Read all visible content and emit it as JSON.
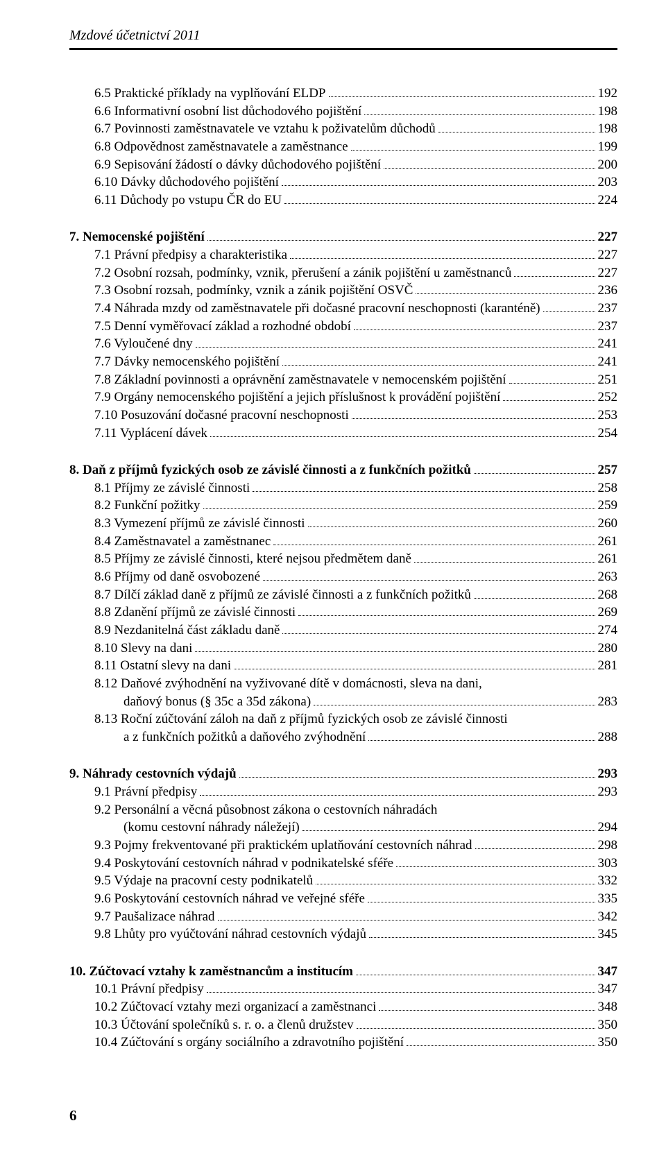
{
  "header_title": "Mzdové účetnictví 2011",
  "blocks": [
    {
      "items": [
        {
          "level": "level-1",
          "label": "6.5  Praktické příklady na vyplňování ELDP",
          "page": "192"
        },
        {
          "level": "level-1",
          "label": "6.6  Informativní osobní list důchodového pojištění",
          "page": "198"
        },
        {
          "level": "level-1",
          "label": "6.7  Povinnosti zaměstnavatele ve vztahu k poživatelům důchodů",
          "page": "198"
        },
        {
          "level": "level-1",
          "label": "6.8  Odpovědnost zaměstnavatele a zaměstnance",
          "page": "199"
        },
        {
          "level": "level-1",
          "label": "6.9  Sepisování žádostí o dávky důchodového pojištění",
          "page": "200"
        },
        {
          "level": "level-1",
          "label": "6.10  Dávky důchodového pojištění",
          "page": "203"
        },
        {
          "level": "level-1",
          "label": "6.11  Důchody po vstupu ČR do EU",
          "page": "224"
        }
      ]
    },
    {
      "heading": {
        "level": "level-h",
        "label": "7.  Nemocenské pojištění",
        "page": "227"
      },
      "items": [
        {
          "level": "level-1",
          "label": "7.1  Právní předpisy a charakteristika",
          "page": "227"
        },
        {
          "level": "level-1",
          "label": "7.2  Osobní rozsah, podmínky, vznik, přerušení a zánik pojištění u zaměstnanců",
          "page": "227"
        },
        {
          "level": "level-1",
          "label": "7.3  Osobní rozsah, podmínky, vznik a zánik pojištění OSVČ",
          "page": "236"
        },
        {
          "level": "level-1",
          "label": "7.4  Náhrada mzdy od zaměstnavatele při dočasné pracovní neschopnosti (karanténě)",
          "page": "237"
        },
        {
          "level": "level-1",
          "label": "7.5  Denní vyměřovací základ a rozhodné období",
          "page": "237"
        },
        {
          "level": "level-1",
          "label": "7.6  Vyloučené dny",
          "page": "241"
        },
        {
          "level": "level-1",
          "label": "7.7  Dávky nemocenského pojištění",
          "page": "241"
        },
        {
          "level": "level-1",
          "label": "7.8  Základní povinnosti a oprávnění zaměstnavatele v nemocenském pojištění",
          "page": "251"
        },
        {
          "level": "level-1",
          "label": "7.9  Orgány nemocenského pojištění a jejich příslušnost k provádění pojištění",
          "page": "252"
        },
        {
          "level": "level-1",
          "label": "7.10  Posuzování dočasné pracovní neschopnosti",
          "page": "253"
        },
        {
          "level": "level-1",
          "label": "7.11  Vyplácení dávek",
          "page": "254"
        }
      ]
    },
    {
      "heading": {
        "level": "level-h",
        "label": "8.  Daň z příjmů fyzických osob ze závislé činnosti a z funkčních požitků",
        "page": "257"
      },
      "items": [
        {
          "level": "level-1",
          "label": "8.1  Příjmy ze závislé činnosti",
          "page": "258"
        },
        {
          "level": "level-1",
          "label": "8.2  Funkční požitky",
          "page": "259"
        },
        {
          "level": "level-1",
          "label": "8.3  Vymezení příjmů ze závislé činnosti",
          "page": "260"
        },
        {
          "level": "level-1",
          "label": "8.4  Zaměstnavatel a zaměstnanec",
          "page": "261"
        },
        {
          "level": "level-1",
          "label": "8.5  Příjmy ze závislé činnosti, které nejsou předmětem daně",
          "page": "261"
        },
        {
          "level": "level-1",
          "label": "8.6  Příjmy od daně osvobozené",
          "page": "263"
        },
        {
          "level": "level-1",
          "label": "8.7  Dílčí základ daně z příjmů ze závislé činnosti a z funkčních požitků",
          "page": "268"
        },
        {
          "level": "level-1",
          "label": "8.8  Zdanění příjmů ze závislé činnosti",
          "page": "269"
        },
        {
          "level": "level-1",
          "label": "8.9  Nezdanitelná část základu daně",
          "page": "274"
        },
        {
          "level": "level-1",
          "label": "8.10  Slevy na dani",
          "page": "280"
        },
        {
          "level": "level-1",
          "label": "8.11  Ostatní slevy na dani",
          "page": "281"
        },
        {
          "level": "level-1",
          "label_lines": [
            "8.12  Daňové zvýhodnění na vyživované dítě v domácnosti, sleva na dani,",
            "daňový bonus (§ 35c a 35d zákona)"
          ],
          "page": "283"
        },
        {
          "level": "level-1",
          "label_lines": [
            "8.13  Roční zúčtování záloh na daň z příjmů fyzických osob ze závislé činnosti",
            "a z funkčních požitků a daňového zvýhodnění"
          ],
          "page": "288"
        }
      ]
    },
    {
      "heading": {
        "level": "level-h",
        "label": "9.  Náhrady cestovních výdajů",
        "page": "293"
      },
      "items": [
        {
          "level": "level-1",
          "label": "9.1  Právní předpisy",
          "page": "293"
        },
        {
          "level": "level-1",
          "label_lines": [
            "9.2  Personální a věcná působnost zákona o cestovních náhradách",
            "(komu cestovní náhrady náležejí)"
          ],
          "page": "294"
        },
        {
          "level": "level-1",
          "label": "9.3  Pojmy frekventované při praktickém uplatňování cestovních náhrad",
          "page": "298"
        },
        {
          "level": "level-1",
          "label": "9.4  Poskytování cestovních náhrad v podnikatelské sféře",
          "page": "303"
        },
        {
          "level": "level-1",
          "label": "9.5  Výdaje na pracovní cesty podnikatelů",
          "page": "332"
        },
        {
          "level": "level-1",
          "label": "9.6  Poskytování cestovních náhrad ve veřejné sféře",
          "page": "335"
        },
        {
          "level": "level-1",
          "label": "9.7  Paušalizace náhrad",
          "page": "342"
        },
        {
          "level": "level-1",
          "label": "9.8  Lhůty pro vyúčtování náhrad cestovních výdajů",
          "page": "345"
        }
      ]
    },
    {
      "heading": {
        "level": "level-h",
        "label": "10.  Zúčtovací vztahy k zaměstnancům a institucím",
        "page": "347"
      },
      "items": [
        {
          "level": "level-1",
          "label": "10.1  Právní předpisy",
          "page": "347"
        },
        {
          "level": "level-1",
          "label": "10.2  Zúčtovací vztahy mezi organizací a zaměstnanci",
          "page": "348"
        },
        {
          "level": "level-1",
          "label": "10.3  Účtování společníků s. r. o. a členů družstev",
          "page": "350"
        },
        {
          "level": "level-1",
          "label": "10.4  Zúčtování s orgány sociálního a zdravotního pojištění",
          "page": "350"
        }
      ]
    }
  ],
  "page_number": "6"
}
